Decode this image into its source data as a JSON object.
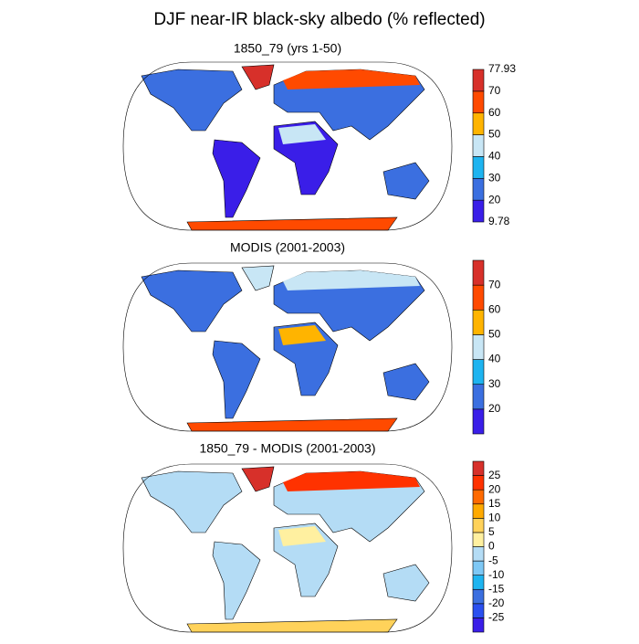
{
  "title": "DJF near-IR black-sky albedo (% reflected)",
  "panels": [
    {
      "title": "1850_79 (yrs 1-50)",
      "colorbar": {
        "colors": [
          "#3a1ee8",
          "#3b6fe0",
          "#1eb4f0",
          "#c8e6f5",
          "#ffb400",
          "#ff4a00",
          "#d7302a"
        ],
        "labels": [
          9.78,
          20,
          30,
          40,
          50,
          60,
          70,
          77.93
        ]
      }
    },
    {
      "title": "MODIS (2001-2003)",
      "colorbar": {
        "colors": [
          "#3a1ee8",
          "#3b6fe0",
          "#1eb4f0",
          "#c8e6f5",
          "#ffb400",
          "#ff4a00",
          "#d7302a"
        ],
        "labels": [
          20,
          30,
          40,
          50,
          60,
          70
        ]
      }
    },
    {
      "title": "1850_79 - MODIS (2001-2003)",
      "colorbar": {
        "colors": [
          "#3a1ee8",
          "#2a50f0",
          "#3b6fe0",
          "#1eb4f0",
          "#7ec8f5",
          "#b4dcf5",
          "#fff0a0",
          "#ffd25a",
          "#ffaa00",
          "#ff6a00",
          "#ff3200",
          "#d7302a"
        ],
        "labels": [
          -25,
          -20,
          -15,
          -10,
          -5,
          0,
          5,
          10,
          15,
          20,
          25
        ]
      }
    }
  ]
}
